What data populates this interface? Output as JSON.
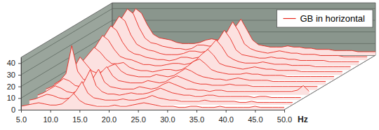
{
  "chart_data": {
    "type": "waterfall",
    "x_label": "Hz",
    "x": [
      5,
      6,
      7,
      8,
      9,
      10,
      11,
      12,
      13,
      14,
      15,
      16,
      17,
      18,
      19,
      20,
      21,
      22,
      23,
      24,
      25,
      26,
      27,
      28,
      29,
      30,
      31,
      32,
      33,
      34,
      35,
      36,
      37,
      38,
      39,
      40,
      41,
      42,
      43,
      44,
      45,
      46,
      47,
      48,
      49,
      50
    ],
    "xlim": [
      5,
      50
    ],
    "xticks": [
      {
        "value": 5,
        "label": "5.0"
      },
      {
        "value": 10,
        "label": "10.0"
      },
      {
        "value": 15,
        "label": "15.0"
      },
      {
        "value": 20,
        "label": "20.0"
      },
      {
        "value": 25,
        "label": "25.0"
      },
      {
        "value": 30,
        "label": "30.0"
      },
      {
        "value": 35,
        "label": "35.0"
      },
      {
        "value": 40,
        "label": "40.0"
      },
      {
        "value": 45,
        "label": "45.0"
      },
      {
        "value": 50,
        "label": "50.0"
      }
    ],
    "ylim": [
      0,
      45
    ],
    "yticks": [
      0,
      10,
      20,
      30,
      40
    ],
    "grid": true,
    "legend": "upper-right",
    "series": [
      {
        "name": "GB in horizontal",
        "color": "#e8281e",
        "values": [
          [
            3,
            4,
            5,
            6,
            5,
            4,
            4,
            5,
            9,
            14,
            8,
            5,
            4,
            3,
            3,
            3,
            4,
            3,
            3,
            4,
            5,
            6,
            5,
            4,
            3,
            3,
            3,
            2,
            2,
            3,
            3,
            2,
            2,
            2,
            3,
            2,
            2,
            2,
            2,
            2,
            3,
            2,
            2,
            2,
            2,
            2
          ],
          [
            4,
            5,
            7,
            9,
            8,
            6,
            5,
            6,
            12,
            20,
            10,
            6,
            5,
            4,
            4,
            4,
            5,
            4,
            4,
            5,
            6,
            8,
            6,
            5,
            4,
            4,
            3,
            3,
            3,
            3,
            4,
            3,
            3,
            3,
            3,
            3,
            2,
            2,
            3,
            2,
            2,
            2,
            2,
            2,
            2,
            2
          ],
          [
            4,
            6,
            9,
            12,
            10,
            7,
            6,
            8,
            16,
            26,
            12,
            7,
            5,
            5,
            4,
            5,
            6,
            5,
            5,
            6,
            8,
            10,
            8,
            6,
            5,
            4,
            4,
            3,
            3,
            4,
            4,
            3,
            3,
            3,
            3,
            3,
            3,
            2,
            3,
            3,
            2,
            2,
            2,
            2,
            2,
            2
          ],
          [
            5,
            7,
            10,
            14,
            12,
            8,
            7,
            9,
            14,
            22,
            11,
            7,
            6,
            5,
            5,
            5,
            7,
            6,
            5,
            6,
            9,
            11,
            9,
            7,
            5,
            5,
            4,
            4,
            3,
            4,
            4,
            3,
            3,
            3,
            3,
            3,
            3,
            3,
            3,
            3,
            3,
            3,
            3,
            4,
            8,
            3
          ],
          [
            5,
            8,
            14,
            38,
            16,
            9,
            8,
            10,
            15,
            20,
            12,
            8,
            7,
            6,
            6,
            6,
            8,
            7,
            6,
            7,
            10,
            12,
            10,
            8,
            6,
            5,
            5,
            4,
            4,
            4,
            5,
            4,
            4,
            4,
            3,
            3,
            3,
            3,
            3,
            3,
            3,
            3,
            3,
            3,
            3,
            3
          ],
          [
            6,
            9,
            15,
            24,
            18,
            12,
            10,
            12,
            16,
            18,
            12,
            9,
            8,
            7,
            7,
            7,
            9,
            8,
            7,
            8,
            11,
            14,
            12,
            9,
            7,
            6,
            5,
            5,
            4,
            5,
            6,
            5,
            4,
            4,
            4,
            4,
            3,
            3,
            3,
            3,
            3,
            3,
            3,
            3,
            3,
            3
          ],
          [
            6,
            10,
            16,
            22,
            28,
            24,
            18,
            14,
            14,
            15,
            11,
            9,
            8,
            8,
            7,
            8,
            9,
            9,
            8,
            9,
            12,
            16,
            18,
            14,
            9,
            7,
            6,
            5,
            5,
            5,
            6,
            5,
            5,
            4,
            4,
            4,
            4,
            3,
            3,
            3,
            3,
            3,
            3,
            3,
            3,
            3
          ],
          [
            7,
            11,
            18,
            26,
            34,
            30,
            22,
            16,
            14,
            13,
            11,
            9,
            9,
            8,
            8,
            9,
            10,
            10,
            9,
            10,
            13,
            18,
            22,
            17,
            10,
            8,
            7,
            6,
            5,
            6,
            7,
            6,
            5,
            5,
            4,
            4,
            4,
            4,
            3,
            3,
            3,
            3,
            3,
            3,
            3,
            3
          ],
          [
            8,
            12,
            20,
            30,
            38,
            34,
            24,
            17,
            14,
            13,
            11,
            10,
            9,
            9,
            8,
            9,
            11,
            11,
            10,
            11,
            15,
            20,
            26,
            20,
            12,
            9,
            7,
            6,
            6,
            6,
            7,
            6,
            5,
            5,
            5,
            4,
            4,
            4,
            4,
            3,
            3,
            3,
            3,
            3,
            3,
            3
          ],
          [
            8,
            13,
            22,
            34,
            42,
            38,
            26,
            18,
            15,
            13,
            12,
            10,
            9,
            9,
            9,
            10,
            12,
            12,
            11,
            12,
            16,
            22,
            30,
            23,
            13,
            9,
            8,
            7,
            6,
            6,
            7,
            6,
            6,
            5,
            5,
            4,
            4,
            4,
            4,
            4,
            3,
            3,
            3,
            3,
            3,
            3
          ],
          [
            9,
            14,
            24,
            36,
            44,
            40,
            28,
            19,
            15,
            14,
            12,
            11,
            10,
            10,
            9,
            10,
            13,
            13,
            12,
            13,
            18,
            24,
            33,
            25,
            14,
            10,
            8,
            7,
            6,
            7,
            8,
            7,
            6,
            6,
            5,
            5,
            5,
            4,
            4,
            4,
            4,
            3,
            3,
            3,
            3,
            3
          ],
          [
            9,
            14,
            22,
            32,
            40,
            36,
            26,
            18,
            15,
            14,
            13,
            11,
            10,
            10,
            10,
            11,
            13,
            14,
            13,
            14,
            18,
            24,
            31,
            22,
            13,
            9,
            8,
            7,
            7,
            7,
            8,
            7,
            7,
            6,
            6,
            5,
            5,
            5,
            4,
            4,
            4,
            4,
            3,
            3,
            3,
            3
          ]
        ]
      }
    ]
  }
}
